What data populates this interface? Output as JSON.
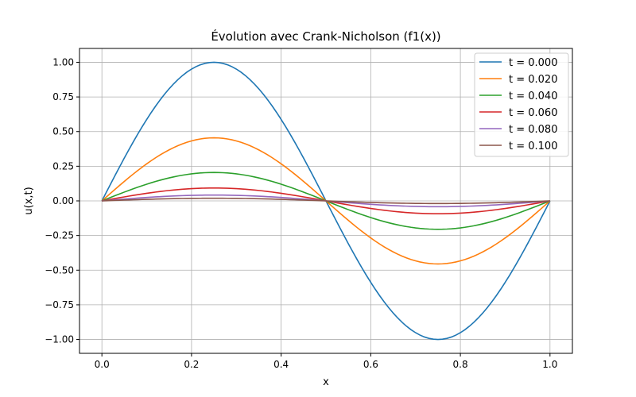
{
  "chart_data": {
    "type": "line",
    "title": "Évolution avec Crank-Nicholson (f1(x))",
    "xlabel": "x",
    "ylabel": "u(x,t)",
    "xlim": [
      -0.05,
      1.05
    ],
    "ylim": [
      -1.1,
      1.1
    ],
    "xticks": [
      "0.0",
      "0.2",
      "0.4",
      "0.6",
      "0.8",
      "1.0"
    ],
    "yticks": [
      "1.00",
      "0.75",
      "0.50",
      "0.25",
      "0.00",
      "−0.25",
      "−0.50",
      "−0.75",
      "−1.00"
    ],
    "grid": true,
    "legend_position": "top-right",
    "function": "A * sin(2*pi*x), x in [0, 1]",
    "series": [
      {
        "name": "t = 0.000",
        "amplitude": 1.0,
        "color": "#1f77b4"
      },
      {
        "name": "t = 0.020",
        "amplitude": 0.455,
        "color": "#ff7f0e"
      },
      {
        "name": "t = 0.040",
        "amplitude": 0.205,
        "color": "#2ca02c"
      },
      {
        "name": "t = 0.060",
        "amplitude": 0.093,
        "color": "#d62728"
      },
      {
        "name": "t = 0.080",
        "amplitude": 0.042,
        "color": "#9467bd"
      },
      {
        "name": "t = 0.100",
        "amplitude": 0.019,
        "color": "#8c564b"
      }
    ]
  }
}
